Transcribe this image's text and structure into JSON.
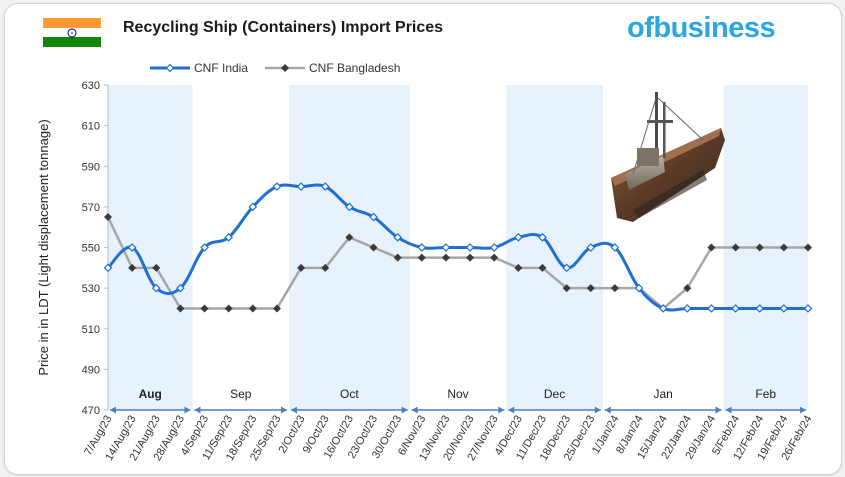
{
  "header": {
    "title": "Recycling Ship (Containers) Import Prices",
    "logo_text": "ofbusiness",
    "flag_colors": [
      "#FF9933",
      "#FFFFFF",
      "#138808"
    ]
  },
  "chart_data": {
    "type": "line",
    "title": "Recycling Ship (Containers) Import Prices",
    "ylabel": "Price in in LDT (Light displacement tonnage)",
    "xlabel": "",
    "ylim": [
      470,
      630
    ],
    "yticks": [
      470,
      490,
      510,
      530,
      550,
      570,
      590,
      610,
      630
    ],
    "grid": "vertical month bands",
    "legend_position": "top",
    "categories": [
      "7/Aug/23",
      "14/Aug/23",
      "21/Aug/23",
      "28/Aug/23",
      "4/Sep/23",
      "11/Sep/23",
      "18/Sep/23",
      "25/Sep/23",
      "2/Oct/23",
      "9/Oct/23",
      "16/Oct/23",
      "23/Oct/23",
      "30/Oct/23",
      "6/Nov/23",
      "13/Nov/23",
      "20/Nov/23",
      "27/Nov/23",
      "4/Dec/23",
      "11/Dec/23",
      "18/Dec/23",
      "25/Dec/23",
      "1/Jan/24",
      "8/Jan/24",
      "15/Jan/24",
      "22/Jan/24",
      "29/Jan/24",
      "5/Feb/24",
      "12/Feb/24",
      "19/Feb/24",
      "26/Feb/24"
    ],
    "series": [
      {
        "name": "CNF India",
        "color": "#1f6fd4",
        "values": [
          540,
          550,
          530,
          530,
          550,
          555,
          570,
          580,
          580,
          580,
          570,
          565,
          555,
          550,
          550,
          550,
          550,
          555,
          555,
          540,
          550,
          550,
          530,
          520,
          520,
          520,
          520,
          520,
          520,
          520
        ]
      },
      {
        "name": "CNF Bangladesh",
        "color": "#a6a6a6",
        "values": [
          565,
          540,
          540,
          520,
          520,
          520,
          520,
          520,
          540,
          540,
          555,
          550,
          545,
          545,
          545,
          545,
          545,
          540,
          540,
          530,
          530,
          530,
          530,
          520,
          530,
          550,
          550,
          550,
          550,
          550
        ]
      }
    ],
    "months": [
      {
        "label": "Aug",
        "start": 0,
        "end": 3,
        "shaded": true
      },
      {
        "label": "Sep",
        "start": 4,
        "end": 7,
        "shaded": false
      },
      {
        "label": "Oct",
        "start": 8,
        "end": 12,
        "shaded": true
      },
      {
        "label": "Nov",
        "start": 13,
        "end": 16,
        "shaded": false
      },
      {
        "label": "Dec",
        "start": 17,
        "end": 20,
        "shaded": true
      },
      {
        "label": "Jan",
        "start": 21,
        "end": 25,
        "shaded": false
      },
      {
        "label": "Feb",
        "start": 26,
        "end": 29,
        "shaded": true
      }
    ]
  }
}
